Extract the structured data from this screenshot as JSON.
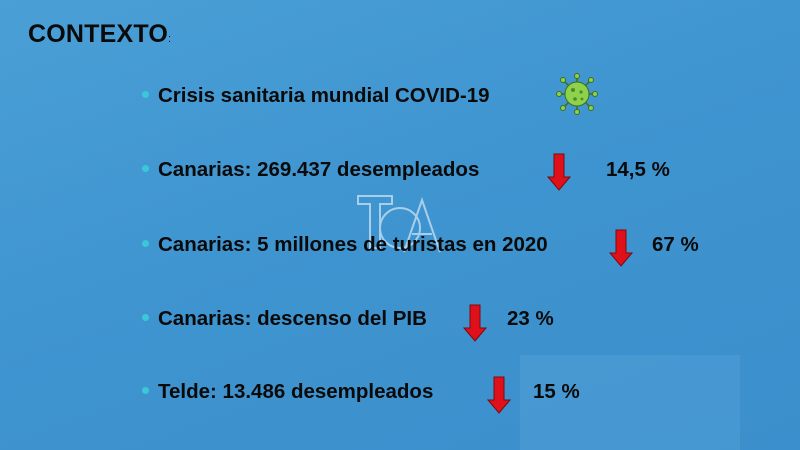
{
  "title": {
    "text": "CONTEXTO",
    "suffix": ":"
  },
  "items": [
    {
      "text": "Crisis sanitaria mundial COVID-19",
      "icon": "virus-icon"
    },
    {
      "text": "Canarias:  269.437 desempleados",
      "trend": "down",
      "value": "14,5 %"
    },
    {
      "text": "Canarias: 5 millones de turistas en 2020",
      "trend": "down",
      "value": "67 %"
    },
    {
      "text": "Canarias: descenso del PIB",
      "trend": "down",
      "value": "23 %"
    },
    {
      "text": "Telde:  13.486 desempleados",
      "trend": "down",
      "value": "15 %"
    }
  ],
  "colors": {
    "background": "#4a9fd6",
    "bullet": "#38c8d8",
    "arrow": "#e0101a",
    "virus": "#8ed14a"
  }
}
